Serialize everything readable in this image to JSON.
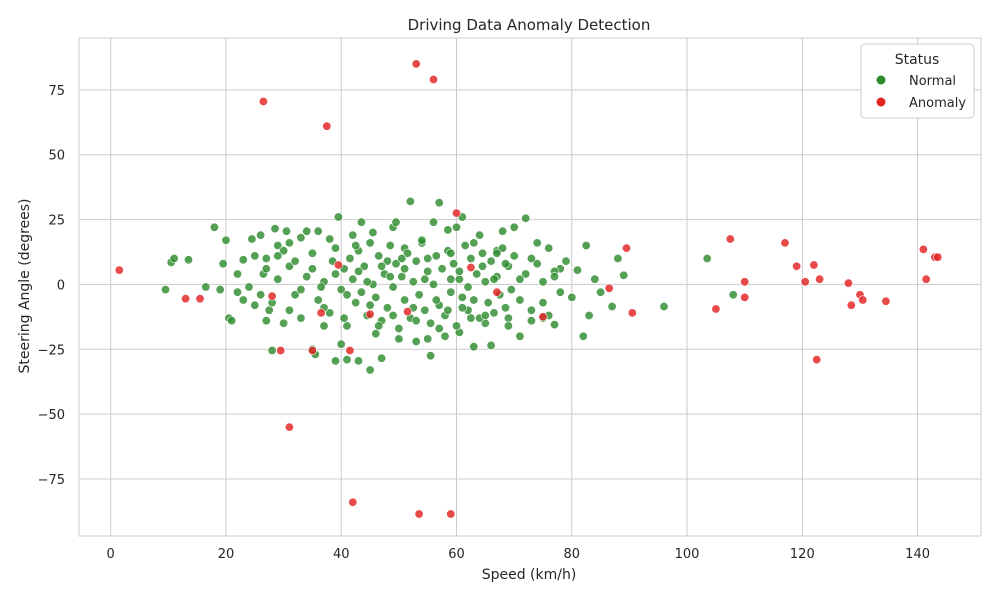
{
  "chart_data": {
    "type": "scatter",
    "title": "Driving Data Anomaly Detection",
    "xlabel": "Speed (km/h)",
    "ylabel": "Steering Angle (degrees)",
    "xlim": [
      -5.5,
      151
    ],
    "ylim": [
      -97,
      95
    ],
    "x_ticks": [
      0,
      20,
      40,
      60,
      80,
      100,
      120,
      140
    ],
    "x_tick_labels": [
      "0",
      "20",
      "40",
      "60",
      "80",
      "100",
      "120",
      "140"
    ],
    "y_ticks": [
      -75,
      -50,
      -25,
      0,
      25,
      50,
      75
    ],
    "y_tick_labels": [
      "−75",
      "−50",
      "−25",
      "0",
      "25",
      "50",
      "75"
    ],
    "grid": true,
    "legend": {
      "title": "Status",
      "position": "top-right",
      "entries": [
        {
          "label": "Normal",
          "color": "#2e8b2e"
        },
        {
          "label": "Anomaly",
          "color": "#e32222"
        }
      ]
    },
    "series": [
      {
        "name": "Normal",
        "color": "#2e8b2e",
        "points": [
          [
            9.5,
            -2
          ],
          [
            10.5,
            8.5
          ],
          [
            11,
            10
          ],
          [
            13.5,
            9.5
          ],
          [
            16.5,
            -1
          ],
          [
            18,
            22
          ],
          [
            19,
            -2
          ],
          [
            19.5,
            8
          ],
          [
            20,
            17
          ],
          [
            20.5,
            -13
          ],
          [
            21,
            -14
          ],
          [
            22,
            -3
          ],
          [
            23,
            9.5
          ],
          [
            24.5,
            17.5
          ],
          [
            25,
            -8
          ],
          [
            26,
            19
          ],
          [
            26.5,
            4
          ],
          [
            27,
            10
          ],
          [
            27.5,
            -10
          ],
          [
            28,
            -25.5
          ],
          [
            28.5,
            21.5
          ],
          [
            29,
            15
          ],
          [
            30,
            -15
          ],
          [
            30.5,
            20.5
          ],
          [
            31,
            7
          ],
          [
            32,
            -4
          ],
          [
            33,
            18
          ],
          [
            34,
            20.5
          ],
          [
            35,
            -25
          ],
          [
            35.5,
            -27
          ],
          [
            36,
            20.5
          ],
          [
            37,
            -16
          ],
          [
            38,
            17.5
          ],
          [
            39,
            -29.5
          ],
          [
            39.5,
            26
          ],
          [
            40,
            -23
          ],
          [
            41,
            -29
          ],
          [
            42,
            19
          ],
          [
            43,
            -29.5
          ],
          [
            43.5,
            24
          ],
          [
            45,
            -33
          ],
          [
            45.5,
            20
          ],
          [
            46,
            -19
          ],
          [
            47,
            -28.5
          ],
          [
            48,
            9
          ],
          [
            49,
            22
          ],
          [
            49.5,
            24
          ],
          [
            50,
            -21
          ],
          [
            51,
            14
          ],
          [
            52,
            32
          ],
          [
            53,
            -22
          ],
          [
            54,
            16
          ],
          [
            55,
            -21
          ],
          [
            55.5,
            -27.5
          ],
          [
            56,
            24
          ],
          [
            57,
            31.5
          ],
          [
            58,
            -20
          ],
          [
            58.5,
            21
          ],
          [
            59,
            2
          ],
          [
            60,
            22
          ],
          [
            60.5,
            -18.5
          ],
          [
            61,
            26
          ],
          [
            62,
            -10
          ],
          [
            63,
            -24
          ],
          [
            64,
            19
          ],
          [
            65,
            -15
          ],
          [
            66,
            -23.5
          ],
          [
            67,
            13
          ],
          [
            68,
            20.5
          ],
          [
            69,
            -13
          ],
          [
            70,
            22
          ],
          [
            71,
            -20
          ],
          [
            72,
            25.5
          ],
          [
            73,
            -14
          ],
          [
            74,
            16
          ],
          [
            75,
            -7
          ],
          [
            76,
            14
          ],
          [
            77,
            -15.5
          ],
          [
            78,
            6
          ],
          [
            79,
            9
          ],
          [
            80,
            -5
          ],
          [
            81,
            5.5
          ],
          [
            82,
            -20
          ],
          [
            82.5,
            15
          ],
          [
            83,
            -12
          ],
          [
            84,
            2
          ],
          [
            85,
            -3
          ],
          [
            87,
            -8.5
          ],
          [
            88,
            10
          ],
          [
            89,
            3.5
          ],
          [
            96,
            -8.5
          ],
          [
            103.5,
            10
          ],
          [
            108,
            -4
          ],
          [
            22,
            4
          ],
          [
            24,
            -1
          ],
          [
            25,
            11
          ],
          [
            26,
            -4
          ],
          [
            27,
            6
          ],
          [
            28,
            -7
          ],
          [
            29,
            2
          ],
          [
            30,
            13
          ],
          [
            31,
            -10
          ],
          [
            32,
            9
          ],
          [
            33,
            -13
          ],
          [
            34,
            3
          ],
          [
            35,
            12
          ],
          [
            36,
            -6
          ],
          [
            37,
            1
          ],
          [
            38,
            -11
          ],
          [
            39,
            14
          ],
          [
            40,
            -2
          ],
          [
            40.5,
            6
          ],
          [
            41,
            -16
          ],
          [
            41.5,
            10
          ],
          [
            42,
            2
          ],
          [
            42.5,
            -7
          ],
          [
            43,
            13
          ],
          [
            43.5,
            -3
          ],
          [
            44,
            7
          ],
          [
            44.5,
            -12
          ],
          [
            45,
            16
          ],
          [
            45.5,
            0
          ],
          [
            46,
            -5
          ],
          [
            46.5,
            11
          ],
          [
            47,
            -14
          ],
          [
            47.5,
            4
          ],
          [
            48,
            -9
          ],
          [
            48.5,
            15
          ],
          [
            49,
            -1
          ],
          [
            49.5,
            8
          ],
          [
            50,
            -17
          ],
          [
            50.5,
            3
          ],
          [
            51,
            -6
          ],
          [
            51.5,
            12
          ],
          [
            52,
            -13
          ],
          [
            52.5,
            1
          ],
          [
            53,
            9
          ],
          [
            53.5,
            -4
          ],
          [
            54,
            17
          ],
          [
            54.5,
            -10
          ],
          [
            55,
            5
          ],
          [
            55.5,
            -15
          ],
          [
            56,
            0
          ],
          [
            56.5,
            11
          ],
          [
            57,
            -8
          ],
          [
            57.5,
            6
          ],
          [
            58,
            -12
          ],
          [
            58.5,
            13
          ],
          [
            59,
            -3
          ],
          [
            59.5,
            8
          ],
          [
            60,
            -16
          ],
          [
            60.5,
            2
          ],
          [
            61,
            -9
          ],
          [
            61.5,
            15
          ],
          [
            62,
            -1
          ],
          [
            62.5,
            10
          ],
          [
            63,
            -6
          ],
          [
            63.5,
            4
          ],
          [
            64,
            -13
          ],
          [
            64.5,
            12
          ],
          [
            65,
            1
          ],
          [
            65.5,
            -7
          ],
          [
            66,
            9
          ],
          [
            66.5,
            -11
          ],
          [
            67,
            3
          ],
          [
            67.5,
            -4
          ],
          [
            68,
            14
          ],
          [
            68.5,
            -9
          ],
          [
            69,
            7
          ],
          [
            69.5,
            -2
          ],
          [
            70,
            11
          ],
          [
            71,
            -6
          ],
          [
            72,
            4
          ],
          [
            73,
            -10
          ],
          [
            74,
            8
          ],
          [
            75,
            1
          ],
          [
            76,
            -12
          ],
          [
            77,
            5
          ],
          [
            78,
            -3
          ],
          [
            23,
            -6
          ],
          [
            27,
            -14
          ],
          [
            29,
            11
          ],
          [
            31,
            16
          ],
          [
            33,
            -2
          ],
          [
            35,
            6
          ],
          [
            37,
            -9
          ],
          [
            39,
            4
          ],
          [
            41,
            -4
          ],
          [
            43,
            5
          ],
          [
            45,
            -8
          ],
          [
            47,
            7
          ],
          [
            49,
            -12
          ],
          [
            51,
            6
          ],
          [
            53,
            -14
          ],
          [
            55,
            10
          ],
          [
            57,
            -17
          ],
          [
            59,
            12
          ],
          [
            61,
            -5
          ],
          [
            63,
            16
          ],
          [
            65,
            -12
          ],
          [
            67,
            12
          ],
          [
            69,
            -16
          ],
          [
            71,
            2
          ],
          [
            73,
            10
          ],
          [
            75,
            -13
          ],
          [
            77,
            3
          ],
          [
            36.5,
            -1
          ],
          [
            38.5,
            9
          ],
          [
            40.5,
            -13
          ],
          [
            42.5,
            15
          ],
          [
            44.5,
            1
          ],
          [
            46.5,
            -16
          ],
          [
            48.5,
            3
          ],
          [
            50.5,
            10
          ],
          [
            52.5,
            -9
          ],
          [
            54.5,
            2
          ],
          [
            56.5,
            -6
          ],
          [
            58.5,
            -10
          ],
          [
            60.5,
            5
          ],
          [
            62.5,
            -13
          ],
          [
            64.5,
            7
          ],
          [
            66.5,
            2
          ],
          [
            68.5,
            8
          ]
        ]
      },
      {
        "name": "Anomaly",
        "color": "#e32222",
        "points": [
          [
            1.5,
            5.5
          ],
          [
            13,
            -5.5
          ],
          [
            15.5,
            -5.5
          ],
          [
            26.5,
            70.5
          ],
          [
            28,
            -4.5
          ],
          [
            29.5,
            -25.5
          ],
          [
            31,
            -55
          ],
          [
            35,
            -25.5
          ],
          [
            36.5,
            -11
          ],
          [
            37.5,
            61
          ],
          [
            39.5,
            7.5
          ],
          [
            41.5,
            -25.5
          ],
          [
            42,
            -84
          ],
          [
            45,
            -11.5
          ],
          [
            51.5,
            -10.5
          ],
          [
            53,
            85
          ],
          [
            53.5,
            -88.5
          ],
          [
            56,
            79
          ],
          [
            59,
            -88.5
          ],
          [
            60,
            27.5
          ],
          [
            62.5,
            6.5
          ],
          [
            67,
            -3
          ],
          [
            75,
            -12.5
          ],
          [
            86.5,
            -1.5
          ],
          [
            89.5,
            14
          ],
          [
            90.5,
            -11
          ],
          [
            105,
            -9.5
          ],
          [
            107.5,
            17.5
          ],
          [
            110,
            1
          ],
          [
            110,
            -5
          ],
          [
            117,
            16
          ],
          [
            119,
            7
          ],
          [
            120.5,
            1
          ],
          [
            122,
            7.5
          ],
          [
            122.5,
            -29
          ],
          [
            123,
            2
          ],
          [
            128,
            0.5
          ],
          [
            128.5,
            -8
          ],
          [
            130,
            -4
          ],
          [
            130.5,
            -6
          ],
          [
            134.5,
            -6.5
          ],
          [
            141,
            13.5
          ],
          [
            141.5,
            2
          ],
          [
            143,
            10.5
          ],
          [
            143.5,
            10.5
          ]
        ]
      }
    ]
  }
}
